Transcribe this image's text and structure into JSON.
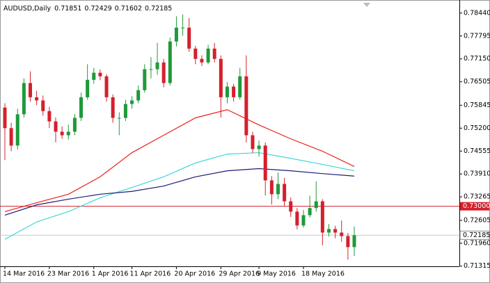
{
  "chart_data": {
    "type": "candlestick",
    "title": "AUDUSD,Daily",
    "header_values": [
      0.71851,
      0.72429,
      0.71602,
      0.72185
    ],
    "categories": [
      "14 Mar 2016",
      null,
      null,
      null,
      null,
      null,
      null,
      "23 Mar 2016",
      null,
      null,
      null,
      null,
      null,
      null,
      "1 Apr 2016",
      null,
      null,
      null,
      null,
      null,
      "11 Apr 2016",
      null,
      null,
      null,
      null,
      null,
      null,
      "20 Apr 2016",
      null,
      null,
      null,
      null,
      null,
      null,
      "29 Apr 2016",
      null,
      null,
      null,
      null,
      null,
      "9 May 2016",
      null,
      null,
      null,
      null,
      null,
      null,
      "18 May 2016",
      null,
      null,
      null,
      null,
      null,
      null,
      null,
      null
    ],
    "open": [
      0.7578,
      0.752,
      0.7471,
      0.7559,
      0.7647,
      0.7607,
      0.7598,
      0.7568,
      0.7539,
      0.751,
      0.75,
      0.751,
      0.7549,
      0.7607,
      0.7656,
      0.7676,
      0.7666,
      0.7607,
      0.7549,
      0.7549,
      0.7588,
      0.7598,
      0.7627,
      0.7686,
      0.7686,
      0.7705,
      0.7647,
      0.7764,
      0.7803,
      0.7803,
      0.7744,
      0.7715,
      0.7705,
      0.7744,
      0.7715,
      0.7607,
      0.7637,
      0.7607,
      0.7666,
      0.75,
      0.7461,
      0.7471,
      0.7373,
      0.7334,
      0.7363,
      0.7314,
      0.7285,
      0.7246,
      0.7275,
      0.7295,
      0.7314,
      0.7226,
      0.7236,
      0.7226,
      0.7216,
      0.71851
    ],
    "high": [
      0.759,
      0.7535,
      0.7575,
      0.766,
      0.768,
      0.7625,
      0.7612,
      0.758,
      0.755,
      0.7525,
      0.753,
      0.756,
      0.762,
      0.77,
      0.769,
      0.7685,
      0.7672,
      0.7615,
      0.7565,
      0.76,
      0.761,
      0.764,
      0.77,
      0.772,
      0.776,
      0.7715,
      0.7775,
      0.7835,
      0.784,
      0.783,
      0.7752,
      0.7725,
      0.7755,
      0.776,
      0.7725,
      0.765,
      0.7645,
      0.769,
      0.7725,
      0.751,
      0.7485,
      0.748,
      0.7385,
      0.7395,
      0.738,
      0.7325,
      0.7295,
      0.729,
      0.733,
      0.737,
      0.732,
      0.725,
      0.7245,
      0.726,
      0.7225,
      0.72429
    ],
    "low": [
      0.743,
      0.7455,
      0.746,
      0.755,
      0.7595,
      0.7585,
      0.7555,
      0.752,
      0.748,
      0.749,
      0.7488,
      0.75,
      0.754,
      0.76,
      0.7645,
      0.7655,
      0.7595,
      0.7535,
      0.75,
      0.754,
      0.7575,
      0.759,
      0.762,
      0.766,
      0.767,
      0.7635,
      0.764,
      0.775,
      0.778,
      0.7735,
      0.77,
      0.7695,
      0.77,
      0.7705,
      0.755,
      0.759,
      0.7595,
      0.76,
      0.748,
      0.745,
      0.744,
      0.733,
      0.7305,
      0.732,
      0.73,
      0.727,
      0.7235,
      0.724,
      0.7268,
      0.7285,
      0.719,
      0.7215,
      0.721,
      0.72,
      0.715,
      0.71602
    ],
    "close": [
      0.752,
      0.7471,
      0.7559,
      0.7647,
      0.7607,
      0.7598,
      0.7568,
      0.7539,
      0.751,
      0.75,
      0.751,
      0.7549,
      0.7607,
      0.7656,
      0.7676,
      0.7666,
      0.7607,
      0.7549,
      0.7549,
      0.7588,
      0.7598,
      0.7627,
      0.7686,
      0.7686,
      0.7705,
      0.7647,
      0.7764,
      0.7803,
      0.7803,
      0.7744,
      0.7715,
      0.7705,
      0.7744,
      0.7715,
      0.7607,
      0.7637,
      0.7607,
      0.7666,
      0.75,
      0.7461,
      0.7471,
      0.7373,
      0.7334,
      0.7363,
      0.7314,
      0.7285,
      0.7246,
      0.7275,
      0.7295,
      0.7314,
      0.7226,
      0.7236,
      0.7226,
      0.7216,
      0.7185,
      0.72185
    ],
    "up_color": "#1e9a3a",
    "down_color": "#d3212d",
    "moving_averages": [
      {
        "color": "#e8201c",
        "x": [
          0,
          5,
          10,
          15,
          20,
          25,
          30,
          35,
          40,
          45,
          50,
          55
        ],
        "values": [
          0.7285,
          0.731,
          0.7334,
          0.7383,
          0.7451,
          0.75,
          0.7549,
          0.7572,
          0.7529,
          0.749,
          0.7455,
          0.7412
        ]
      },
      {
        "color": "#3fd8d8",
        "x": [
          0,
          5,
          10,
          15,
          20,
          25,
          30,
          35,
          40,
          45,
          50,
          55
        ],
        "values": [
          0.7207,
          0.7256,
          0.7285,
          0.7324,
          0.7353,
          0.7383,
          0.7422,
          0.7447,
          0.7451,
          0.7435,
          0.7418,
          0.74
        ]
      },
      {
        "color": "#1c1c78",
        "x": [
          0,
          5,
          10,
          15,
          20,
          25,
          30,
          35,
          40,
          45,
          50,
          55
        ],
        "values": [
          0.7275,
          0.7304,
          0.732,
          0.7334,
          0.7342,
          0.7357,
          0.7383,
          0.74,
          0.7406,
          0.74,
          0.7392,
          0.7385
        ]
      }
    ],
    "hline": {
      "value": 0.73,
      "label": "0.73000",
      "color": "#d3212d"
    },
    "last_price": 0.72185,
    "ylim": [
      0.7131,
      0.7873
    ],
    "yticks": [
      {
        "value": 0.7844,
        "label": "0.78440"
      },
      0.77795,
      {
        "value": 0.7715,
        "label": "0.77150"
      },
      0.76505,
      0.75845,
      {
        "value": 0.752,
        "label": "0.75200"
      },
      0.74555,
      {
        "value": 0.7391,
        "label": "0.73910"
      },
      0.73265,
      0.72605,
      {
        "value": 0.7196,
        "label": "0.71960"
      },
      0.71315
    ]
  }
}
